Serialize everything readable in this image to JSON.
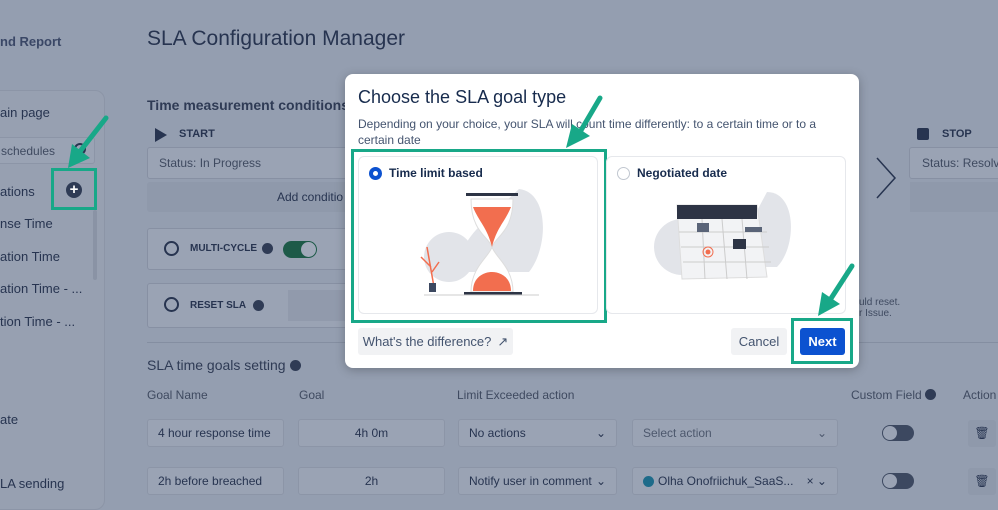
{
  "sidebar": {
    "title": "nd Report",
    "items": [
      "ain page",
      "schedules",
      "ations",
      "nse Time",
      "ation Time",
      "ation Time - ...",
      "tion Time - ...",
      "ate",
      "LA sending"
    ]
  },
  "page": {
    "title": "SLA Configuration Manager",
    "time_conditions": {
      "heading": "Time measurement conditions",
      "start_label": "START",
      "start_value": "Status: In Progress",
      "add_condition": "Add conditio",
      "stop_label": "STOP",
      "stop_value": "Status: Resolv",
      "multi_cycle": "MULTI-CYCLE",
      "multi_cycle_on": true,
      "reset_sla": "RESET SLA",
      "reset_hint_1": "uld reset.",
      "reset_hint_2": "r Issue."
    },
    "goals": {
      "heading": "SLA time goals setting",
      "columns": [
        "Goal Name",
        "Goal",
        "Limit Exceeded action",
        "Custom Field",
        "Action"
      ],
      "rows": [
        {
          "name": "4 hour response time",
          "goal": "4h 0m",
          "action": "No actions",
          "target": "Select action",
          "custom_field": false
        },
        {
          "name": "2h before breached",
          "goal": "2h",
          "action": "Notify user in comment",
          "target": "Olha Onofriichuk_SaaS...",
          "custom_field": false
        }
      ]
    }
  },
  "modal": {
    "title": "Choose the SLA goal type",
    "description": "Depending on your choice, your SLA will count time differently: to a certain time or to a certain date",
    "options": [
      {
        "label": "Time limit based",
        "selected": true,
        "illustration": "hourglass"
      },
      {
        "label": "Negotiated date",
        "selected": false,
        "illustration": "calendar"
      }
    ],
    "diff_link": "What's the difference?",
    "cancel": "Cancel",
    "next": "Next"
  },
  "colors": {
    "primary": "#0c52d0",
    "highlight": "#18a888",
    "accent_orange": "#f26e4f"
  }
}
